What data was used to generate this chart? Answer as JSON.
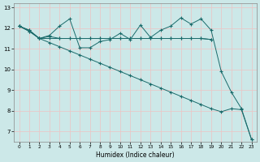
{
  "xlabel": "Humidex (Indice chaleur)",
  "background_color": "#cce8e8",
  "grid_color": "#e8c8c8",
  "line_color": "#1a6b6b",
  "x_ticks": [
    0,
    1,
    2,
    3,
    4,
    5,
    6,
    7,
    8,
    9,
    10,
    11,
    12,
    13,
    14,
    15,
    16,
    17,
    18,
    19,
    20,
    21,
    22,
    23
  ],
  "y_ticks": [
    7,
    8,
    9,
    10,
    11,
    12,
    13
  ],
  "xlim": [
    -0.5,
    23.5
  ],
  "ylim": [
    6.5,
    13.2
  ],
  "series1_x": [
    0,
    1,
    2,
    3,
    4,
    5,
    6,
    7,
    8,
    9,
    10,
    11,
    12,
    13,
    14,
    15,
    16,
    17,
    18,
    19,
    20,
    21,
    22,
    23
  ],
  "series1_y": [
    12.1,
    11.9,
    11.5,
    11.65,
    12.1,
    12.45,
    11.05,
    11.05,
    11.35,
    11.45,
    11.75,
    11.45,
    12.15,
    11.55,
    11.9,
    12.1,
    12.5,
    12.2,
    12.45,
    11.9,
    9.9,
    8.9,
    8.1,
    6.6
  ],
  "series2_x": [
    0,
    1,
    2,
    3,
    4,
    5,
    6,
    7,
    8,
    9,
    10,
    11,
    12,
    13,
    14,
    15,
    16,
    17,
    18,
    19
  ],
  "series2_y": [
    12.1,
    11.9,
    11.5,
    11.6,
    11.5,
    11.5,
    11.5,
    11.5,
    11.5,
    11.5,
    11.5,
    11.5,
    11.5,
    11.5,
    11.5,
    11.5,
    11.5,
    11.5,
    11.5,
    11.45
  ],
  "series3_x": [
    0,
    1,
    2,
    3,
    4,
    5,
    6,
    7,
    8,
    9,
    10,
    11,
    12,
    13,
    14,
    15,
    16,
    17,
    18,
    19
  ],
  "series3_y": [
    12.1,
    11.85,
    11.5,
    11.5,
    11.5,
    11.5,
    11.5,
    11.5,
    11.5,
    11.5,
    11.5,
    11.5,
    11.5,
    11.5,
    11.5,
    11.5,
    11.5,
    11.5,
    11.5,
    11.45
  ],
  "series4_x": [
    0,
    1,
    2,
    3,
    4,
    5,
    6,
    7,
    8,
    9,
    10,
    11,
    12,
    13,
    14,
    15,
    16,
    17,
    18,
    19,
    20,
    21,
    22,
    23
  ],
  "series4_y": [
    12.1,
    11.85,
    11.5,
    11.3,
    11.1,
    10.9,
    10.7,
    10.5,
    10.3,
    10.1,
    9.9,
    9.7,
    9.5,
    9.3,
    9.1,
    8.9,
    8.7,
    8.5,
    8.3,
    8.1,
    7.95,
    8.1,
    8.05,
    6.6
  ]
}
